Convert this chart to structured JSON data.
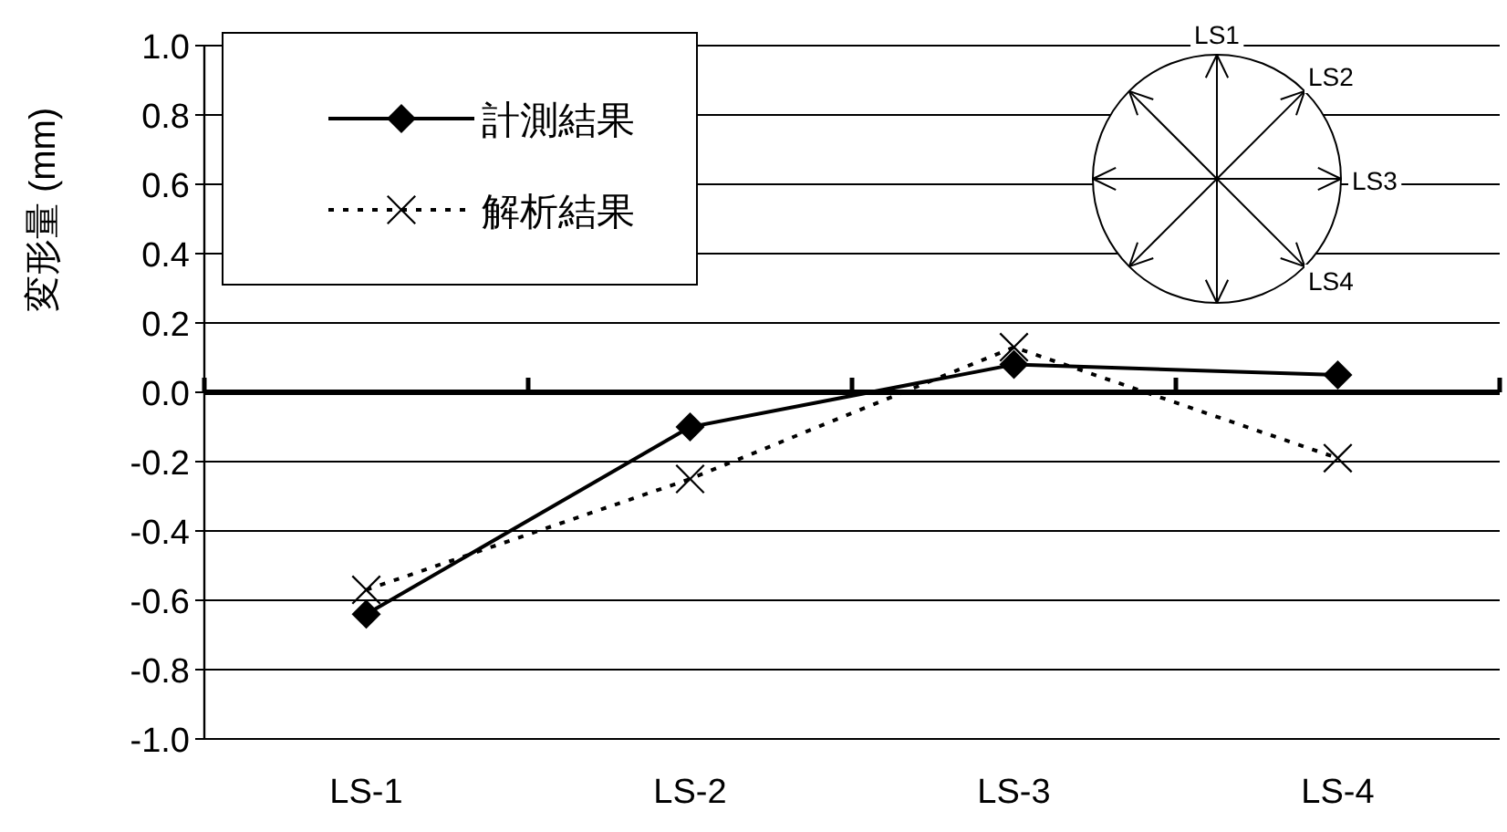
{
  "chart_data": {
    "type": "line",
    "ylabel": "変形量 (mm)",
    "categories": [
      "LS-1",
      "LS-2",
      "LS-3",
      "LS-4"
    ],
    "series": [
      {
        "name": "計測結果",
        "color": "#000000",
        "marker": "diamond",
        "line_style": "solid",
        "values": [
          -0.64,
          -0.1,
          0.08,
          0.05
        ]
      },
      {
        "name": "解析結果",
        "color": "#000000",
        "marker": "cross",
        "line_style": "dotted",
        "values": [
          -0.57,
          -0.25,
          0.13,
          -0.19
        ]
      }
    ],
    "ylim": [
      -1.0,
      1.0
    ],
    "yticks": [
      {
        "value": -1.0,
        "label": "-1.0"
      },
      {
        "value": -0.8,
        "label": "-0.8"
      },
      {
        "value": -0.6,
        "label": "-0.6"
      },
      {
        "value": -0.4,
        "label": "-0.4"
      },
      {
        "value": -0.2,
        "label": "-0.2"
      },
      {
        "value": 0,
        "label": "0.0"
      },
      {
        "value": 0.2,
        "label": "0.2"
      },
      {
        "value": 0.4,
        "label": "0.4"
      },
      {
        "value": 0.6,
        "label": "0.6"
      },
      {
        "value": 0.8,
        "label": "0.8"
      },
      {
        "value": 1.0,
        "label": "1.0"
      }
    ],
    "grid": "y",
    "legend": "top left",
    "annotations": [
      "LS1",
      "LS2",
      "LS3",
      "LS4"
    ]
  }
}
